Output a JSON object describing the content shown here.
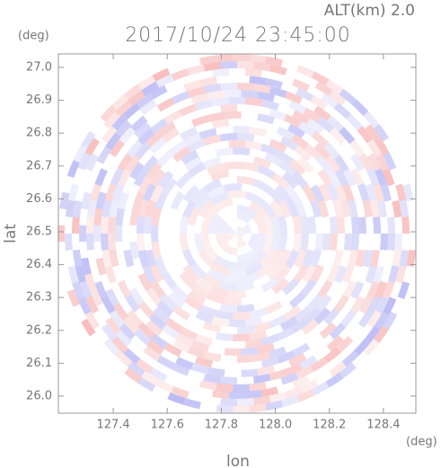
{
  "chart_data": {
    "type": "radar-ppi",
    "title": "2017/10/24 23:45:00",
    "altitude_label": "ALT(km) 2.0",
    "xlabel": "lon",
    "ylabel": "lat",
    "x_unit": "(deg)",
    "y_unit": "(deg)",
    "xlim": [
      127.197,
      128.52
    ],
    "ylim": [
      25.948,
      27.041
    ],
    "xticks": [
      127.4,
      127.6,
      127.8,
      {
        "value": 128.0,
        "label": "128.0"
      },
      128.2,
      128.4
    ],
    "yticks": [
      {
        "value": 26.0,
        "label": "26.0"
      },
      26.1,
      26.2,
      26.3,
      26.4,
      26.5,
      26.6,
      26.7,
      26.8,
      26.9,
      {
        "value": 27.0,
        "label": "27.0"
      }
    ]
  }
}
